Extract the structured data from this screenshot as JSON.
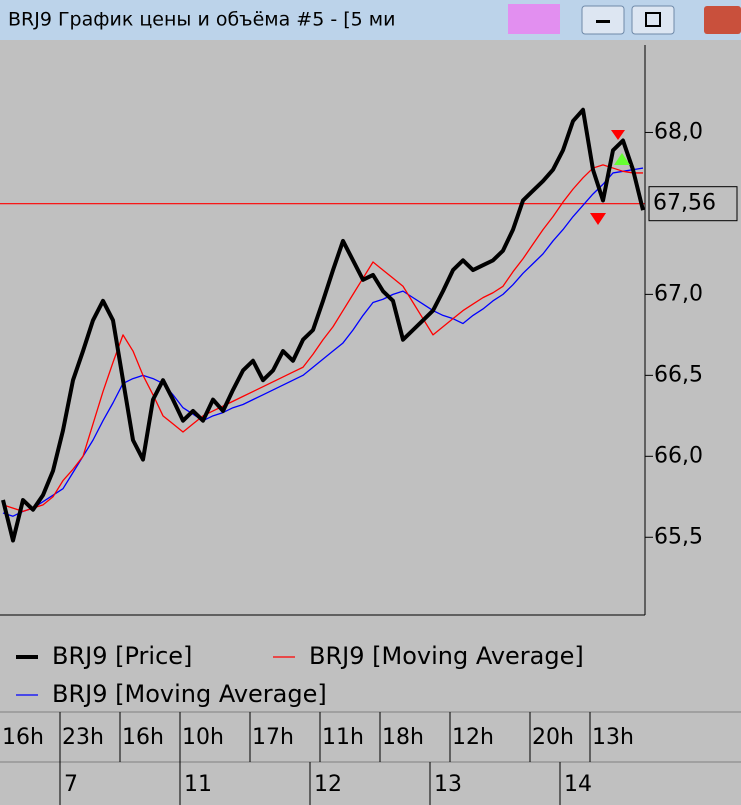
{
  "chart_data": {
    "type": "line",
    "title": "BRJ9 График цены и объёма #5 - [5 ми",
    "categories": [
      "16h",
      null,
      null,
      null,
      null,
      null,
      "23h",
      null,
      null,
      null,
      null,
      null,
      "16h",
      null,
      null,
      null,
      null,
      null,
      "10h",
      null,
      null,
      null,
      null,
      null,
      null,
      "17h",
      null,
      null,
      null,
      null,
      null,
      null,
      "11h",
      null,
      null,
      null,
      null,
      null,
      "18h",
      null,
      null,
      null,
      null,
      null,
      null,
      "12h",
      null,
      null,
      null,
      null,
      null,
      null,
      null,
      "20h",
      null,
      null,
      null,
      null,
      null,
      "13h",
      null,
      null,
      null,
      null,
      null
    ],
    "day_categories": [
      null,
      null,
      null,
      null,
      null,
      null,
      "7",
      null,
      null,
      null,
      null,
      null,
      null,
      null,
      null,
      null,
      null,
      null,
      "11",
      null,
      null,
      null,
      null,
      null,
      null,
      null,
      null,
      null,
      null,
      null,
      null,
      "12",
      null,
      null,
      null,
      null,
      null,
      null,
      null,
      null,
      null,
      null,
      null,
      "13",
      null,
      null,
      null,
      null,
      null,
      null,
      null,
      null,
      null,
      null,
      null,
      null,
      "14",
      null,
      null,
      null,
      null,
      null,
      null,
      null,
      null
    ],
    "series": [
      {
        "name": "BRJ9 [Price]",
        "color": "#000000",
        "values": [
          65.73,
          65.48,
          65.73,
          65.67,
          65.76,
          65.91,
          66.16,
          66.47,
          66.65,
          66.84,
          66.96,
          66.84,
          66.47,
          66.1,
          65.98,
          66.35,
          66.47,
          66.35,
          66.22,
          66.28,
          66.22,
          66.35,
          66.28,
          66.41,
          66.53,
          66.59,
          66.47,
          66.53,
          66.65,
          66.59,
          66.72,
          66.78,
          66.96,
          67.15,
          67.33,
          67.21,
          67.09,
          67.12,
          67.02,
          66.96,
          66.72,
          66.78,
          66.84,
          66.9,
          67.02,
          67.15,
          67.21,
          67.15,
          67.18,
          67.21,
          67.27,
          67.4,
          67.58,
          67.64,
          67.7,
          67.77,
          67.89,
          68.07,
          68.14,
          67.77,
          67.58,
          67.89,
          67.95,
          67.77,
          67.52
        ]
      },
      {
        "name": "BRJ9 [Moving Average]",
        "color": "#ff0000",
        "values": [
          65.7,
          65.68,
          65.66,
          65.68,
          65.7,
          65.75,
          65.85,
          65.92,
          66.0,
          66.2,
          66.4,
          66.58,
          66.75,
          66.65,
          66.5,
          66.38,
          66.25,
          66.2,
          66.15,
          66.2,
          66.25,
          66.28,
          66.31,
          66.34,
          66.37,
          66.4,
          66.43,
          66.46,
          66.49,
          66.52,
          66.55,
          66.63,
          66.72,
          66.8,
          66.9,
          67.0,
          67.1,
          67.2,
          67.15,
          67.1,
          67.05,
          66.95,
          66.85,
          66.75,
          66.8,
          66.85,
          66.9,
          66.94,
          66.98,
          67.01,
          67.05,
          67.14,
          67.22,
          67.31,
          67.4,
          67.48,
          67.57,
          67.65,
          67.72,
          67.78,
          67.8,
          67.78,
          67.76,
          67.75,
          67.75
        ]
      },
      {
        "name": "BRJ9 [Moving Average]",
        "color": "#0000ff",
        "values": [
          65.65,
          65.63,
          65.66,
          65.68,
          65.72,
          65.76,
          65.8,
          65.9,
          66.0,
          66.1,
          66.22,
          66.33,
          66.45,
          66.48,
          66.5,
          66.48,
          66.45,
          66.38,
          66.3,
          66.26,
          66.22,
          66.25,
          66.27,
          66.3,
          66.32,
          66.35,
          66.38,
          66.41,
          66.44,
          66.47,
          66.5,
          66.55,
          66.6,
          66.65,
          66.7,
          66.78,
          66.87,
          66.95,
          66.97,
          67.0,
          67.02,
          66.98,
          66.94,
          66.9,
          66.87,
          66.85,
          66.82,
          66.87,
          66.91,
          66.96,
          67.0,
          67.06,
          67.13,
          67.19,
          67.25,
          67.33,
          67.4,
          67.48,
          67.55,
          67.62,
          67.68,
          67.75,
          67.76,
          67.77,
          67.78
        ]
      }
    ],
    "ylim": [
      65.02,
      68.54
    ],
    "yticks": [
      {
        "value": 65.5,
        "label": "65,5"
      },
      {
        "value": 66.0,
        "label": "66,0"
      },
      {
        "value": 66.5,
        "label": "66,5"
      },
      {
        "value": 67.0,
        "label": "67,0"
      },
      {
        "value": 68.0,
        "label": "68,0"
      }
    ],
    "hline": {
      "value": 67.56,
      "label": "67,56",
      "color": "#ff0000"
    },
    "background": "#c0c0c0"
  }
}
